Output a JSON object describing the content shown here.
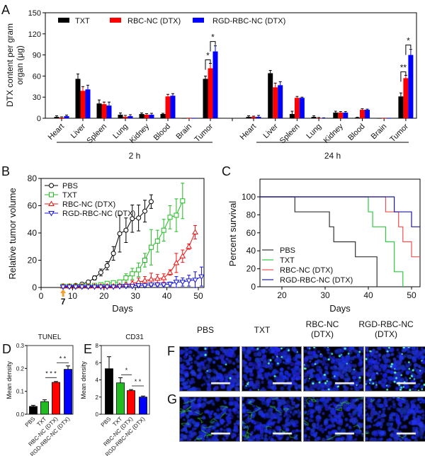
{
  "chart_data": [
    {
      "panel": "A",
      "type": "bar",
      "ylabel_lines": [
        "DTX content per gram",
        "organ (μg)"
      ],
      "ylim": [
        0,
        150
      ],
      "yticks": [
        0,
        30,
        60,
        90,
        120,
        150
      ],
      "legend": {
        "position": "top",
        "entries": [
          "TXT",
          "RBC-NC (DTX)",
          "RGD-RBC-NC (DTX)"
        ]
      },
      "colors": [
        "#000000",
        "#ff0000",
        "#0000ff"
      ],
      "categories": [
        "Heart",
        "Liver",
        "Spleen",
        "Lung",
        "Kidney",
        "Blood",
        "Brain",
        "Tumor"
      ],
      "groups": [
        {
          "label": "2 h",
          "series": [
            {
              "name": "TXT",
              "values": [
                2,
                56,
                21,
                5,
                6,
                6,
                0,
                56
              ],
              "errors": [
                1.5,
                7,
                5,
                2.5,
                1.5,
                1,
                0,
                4
              ]
            },
            {
              "name": "RBC-NC (DTX)",
              "values": [
                1,
                39,
                20,
                2,
                5,
                31,
                0,
                71
              ],
              "errors": [
                1,
                6,
                3,
                2,
                1.5,
                3,
                0,
                7
              ]
            },
            {
              "name": "RGD-RBC-NC (DTX)",
              "values": [
                3,
                41,
                18,
                3,
                5,
                32,
                0,
                95
              ],
              "errors": [
                1.5,
                6,
                5,
                2,
                2,
                3,
                0,
                8
              ]
            }
          ]
        },
        {
          "label": "24 h",
          "series": [
            {
              "name": "TXT",
              "values": [
                2,
                64,
                6,
                2,
                8,
                1,
                0,
                31
              ],
              "errors": [
                1.5,
                4,
                4,
                1.5,
                2,
                0.5,
                0,
                5
              ]
            },
            {
              "name": "RBC-NC (DTX)",
              "values": [
                2,
                44,
                29,
                0.5,
                8,
                12,
                0,
                57
              ],
              "errors": [
                1,
                6,
                2,
                0.5,
                1.5,
                1.5,
                0,
                4
              ]
            },
            {
              "name": "RGD-RBC-NC (DTX)",
              "values": [
                2,
                47,
                29,
                0.3,
                8,
                12,
                0,
                90
              ],
              "errors": [
                2,
                5,
                1,
                0.3,
                1.5,
                1,
                0,
                8
              ]
            }
          ]
        }
      ],
      "significance": [
        {
          "group": 0,
          "category": "Tumor",
          "pair": [
            0,
            1
          ],
          "label": "*"
        },
        {
          "group": 0,
          "category": "Tumor",
          "pair": [
            1,
            2
          ],
          "label": "*"
        },
        {
          "group": 1,
          "category": "Tumor",
          "pair": [
            0,
            1
          ],
          "label": "**"
        },
        {
          "group": 1,
          "category": "Tumor",
          "pair": [
            1,
            2
          ],
          "label": "*"
        }
      ]
    },
    {
      "panel": "B",
      "type": "line",
      "xlabel": "Days",
      "ylabel": "Relative tumor volume",
      "xlim": [
        0,
        52
      ],
      "ylim": [
        0,
        80
      ],
      "xticks": [
        0,
        10,
        20,
        30,
        40,
        50
      ],
      "yticks": [
        0,
        20,
        40,
        60,
        80
      ],
      "legend": {
        "position": "top-left"
      },
      "annotation": {
        "text": "7",
        "x": 7,
        "color": "#f0a030",
        "marker": "up-arrow"
      },
      "series": [
        {
          "name": "PBS",
          "color": "#000000",
          "marker": "circle",
          "x": [
            7,
            9,
            11,
            13,
            15,
            17,
            19,
            21,
            23,
            25,
            27,
            29,
            31,
            33,
            35
          ],
          "y": [
            1,
            1,
            1.5,
            2.5,
            4,
            7,
            11,
            16,
            25,
            39.5,
            42,
            50.5,
            51,
            56,
            63
          ],
          "err": [
            0.5,
            0.5,
            1,
            1,
            1,
            1.5,
            2.5,
            3,
            5,
            13.5,
            9,
            10,
            9.5,
            8,
            5
          ]
        },
        {
          "name": "TXT",
          "color": "#22bb22",
          "marker": "square",
          "x": [
            7,
            9,
            11,
            13,
            15,
            17,
            19,
            21,
            23,
            25,
            27,
            29,
            31,
            33,
            35,
            37,
            39,
            41,
            43,
            45
          ],
          "y": [
            1,
            1,
            1,
            1,
            1,
            1.5,
            2,
            3,
            3.5,
            4,
            7,
            10,
            13,
            20,
            29.5,
            34,
            42,
            51.5,
            53,
            63.5
          ],
          "err": [
            0.3,
            0.3,
            0.3,
            0.3,
            0.5,
            0.5,
            0.5,
            1,
            1,
            1.5,
            3,
            4,
            5,
            5,
            13,
            8,
            8,
            8.5,
            12,
            13
          ]
        },
        {
          "name": "RBC-NC (DTX)",
          "color": "#ee1111",
          "marker": "triangle-up",
          "x": [
            7,
            9,
            11,
            13,
            15,
            17,
            19,
            21,
            23,
            25,
            27,
            29,
            31,
            33,
            35,
            37,
            39,
            41,
            43,
            45,
            47,
            49
          ],
          "y": [
            1,
            1,
            1,
            1,
            1,
            1,
            1,
            1,
            1,
            1.5,
            2,
            3,
            4,
            5,
            6,
            6.5,
            7,
            11,
            18,
            23,
            30,
            40.5
          ],
          "err": [
            0.3,
            0.3,
            0.3,
            0.3,
            0.3,
            0.3,
            0.3,
            0.3,
            0.5,
            0.5,
            1,
            2,
            3,
            3,
            4.5,
            3,
            3,
            2,
            7,
            4.5,
            2,
            5
          ]
        },
        {
          "name": "RGD-RBC-NC (DTX)",
          "color": "#1111dd",
          "marker": "triangle-down",
          "x": [
            7,
            9,
            11,
            13,
            15,
            17,
            19,
            21,
            23,
            25,
            27,
            29,
            31,
            33,
            35,
            37,
            39,
            41,
            43,
            45,
            47,
            49,
            51
          ],
          "y": [
            0.5,
            0.5,
            0.5,
            0.5,
            0.5,
            0.5,
            0.5,
            0.5,
            0.5,
            0.8,
            1,
            1,
            1.5,
            1.5,
            2,
            2,
            2,
            2.5,
            4,
            4,
            5,
            5.5,
            8
          ],
          "err": [
            0.2,
            0.2,
            0.2,
            0.2,
            0.2,
            0.2,
            0.2,
            0.2,
            0.2,
            0.5,
            0.5,
            0.5,
            1,
            1,
            1,
            1,
            1,
            1.5,
            4,
            3,
            4,
            6,
            7
          ]
        }
      ]
    },
    {
      "panel": "C",
      "type": "line",
      "subtype": "kaplan-meier-step",
      "xlabel": "Days",
      "ylabel": "Percent survival",
      "xlim": [
        15,
        52
      ],
      "ylim": [
        0,
        120
      ],
      "xticks": [
        20,
        30,
        40,
        50
      ],
      "yticks": [
        0,
        20,
        40,
        60,
        80,
        100
      ],
      "legend": {
        "position": "bottom-left"
      },
      "series": [
        {
          "name": "PBS",
          "color": "#333333",
          "steps": [
            [
              0,
              100
            ],
            [
              23,
              83.3
            ],
            [
              31,
              66.7
            ],
            [
              32,
              50
            ],
            [
              37,
              33.3
            ],
            [
              42,
              0
            ]
          ]
        },
        {
          "name": "TXT",
          "color": "#2ecc40",
          "steps": [
            [
              0,
              100
            ],
            [
              40,
              83.3
            ],
            [
              41,
              66.7
            ],
            [
              44,
              50
            ],
            [
              46,
              16.7
            ],
            [
              48,
              0
            ]
          ]
        },
        {
          "name": "RBC-NC (DTX)",
          "color": "#f05050",
          "steps": [
            [
              0,
              100
            ],
            [
              44,
              83.3
            ],
            [
              47,
              66.7
            ],
            [
              48,
              50
            ],
            [
              50,
              33.3
            ]
          ]
        },
        {
          "name": "RGD-RBC-NC (DTX)",
          "color": "#1a1a9c",
          "steps": [
            [
              0,
              100
            ],
            [
              46,
              83.3
            ],
            [
              50,
              66.7
            ]
          ]
        }
      ]
    },
    {
      "panel": "D",
      "type": "bar",
      "title": "TUNEL",
      "ylabel": "Mean density",
      "ylim": [
        0,
        0.3
      ],
      "yticks": [
        "0.0",
        "0.1",
        "0.2",
        "0.3"
      ],
      "categories": [
        "PBS",
        "TXT",
        "RBC-NC (DTX)",
        "RGD-RBC-NC (DTX)"
      ],
      "values": [
        0.034,
        0.055,
        0.139,
        0.196
      ],
      "errors": [
        0.005,
        0.008,
        0.004,
        0.015
      ],
      "colors": [
        "#000000",
        "#22bb22",
        "#ff0000",
        "#0000ff"
      ],
      "significance": [
        {
          "pair": [
            1,
            2
          ],
          "level": 0.16,
          "label": "* * *"
        },
        {
          "pair": [
            2,
            3
          ],
          "level": 0.225,
          "label": "* *"
        }
      ]
    },
    {
      "panel": "E",
      "type": "bar",
      "title": "CD31",
      "ylabel": "Mean density",
      "ylim": [
        0,
        8
      ],
      "yticks": [
        "0",
        "2",
        "4",
        "6",
        "8"
      ],
      "categories": [
        "PBS",
        "TXT",
        "RBC-NC (DTX)",
        "RGD-RBC-NC (DTX)"
      ],
      "values": [
        5.3,
        3.65,
        2.75,
        2.0
      ],
      "errors": [
        1.4,
        0.6,
        0.12,
        0.12
      ],
      "colors": [
        "#000000",
        "#22bb22",
        "#ff0000",
        "#0000ff"
      ],
      "significance": [
        {
          "pair": [
            1,
            2
          ],
          "level": 4.6,
          "label": "*"
        },
        {
          "pair": [
            2,
            3
          ],
          "level": 3.3,
          "label": "* *"
        }
      ]
    }
  ],
  "micrographs": {
    "column_headers": [
      [
        "PBS"
      ],
      [
        "TXT"
      ],
      [
        "RBC-NC",
        "(DTX)"
      ],
      [
        "RGD-RBC-NC",
        "(DTX)"
      ]
    ],
    "rows": [
      {
        "panel": "F",
        "stain": "TUNEL"
      },
      {
        "panel": "G",
        "stain": "CD31"
      }
    ],
    "colors": {
      "nuclei": "#1a2ae0",
      "signal": "#30f0a0",
      "scale_bar": "#ffffff"
    }
  }
}
